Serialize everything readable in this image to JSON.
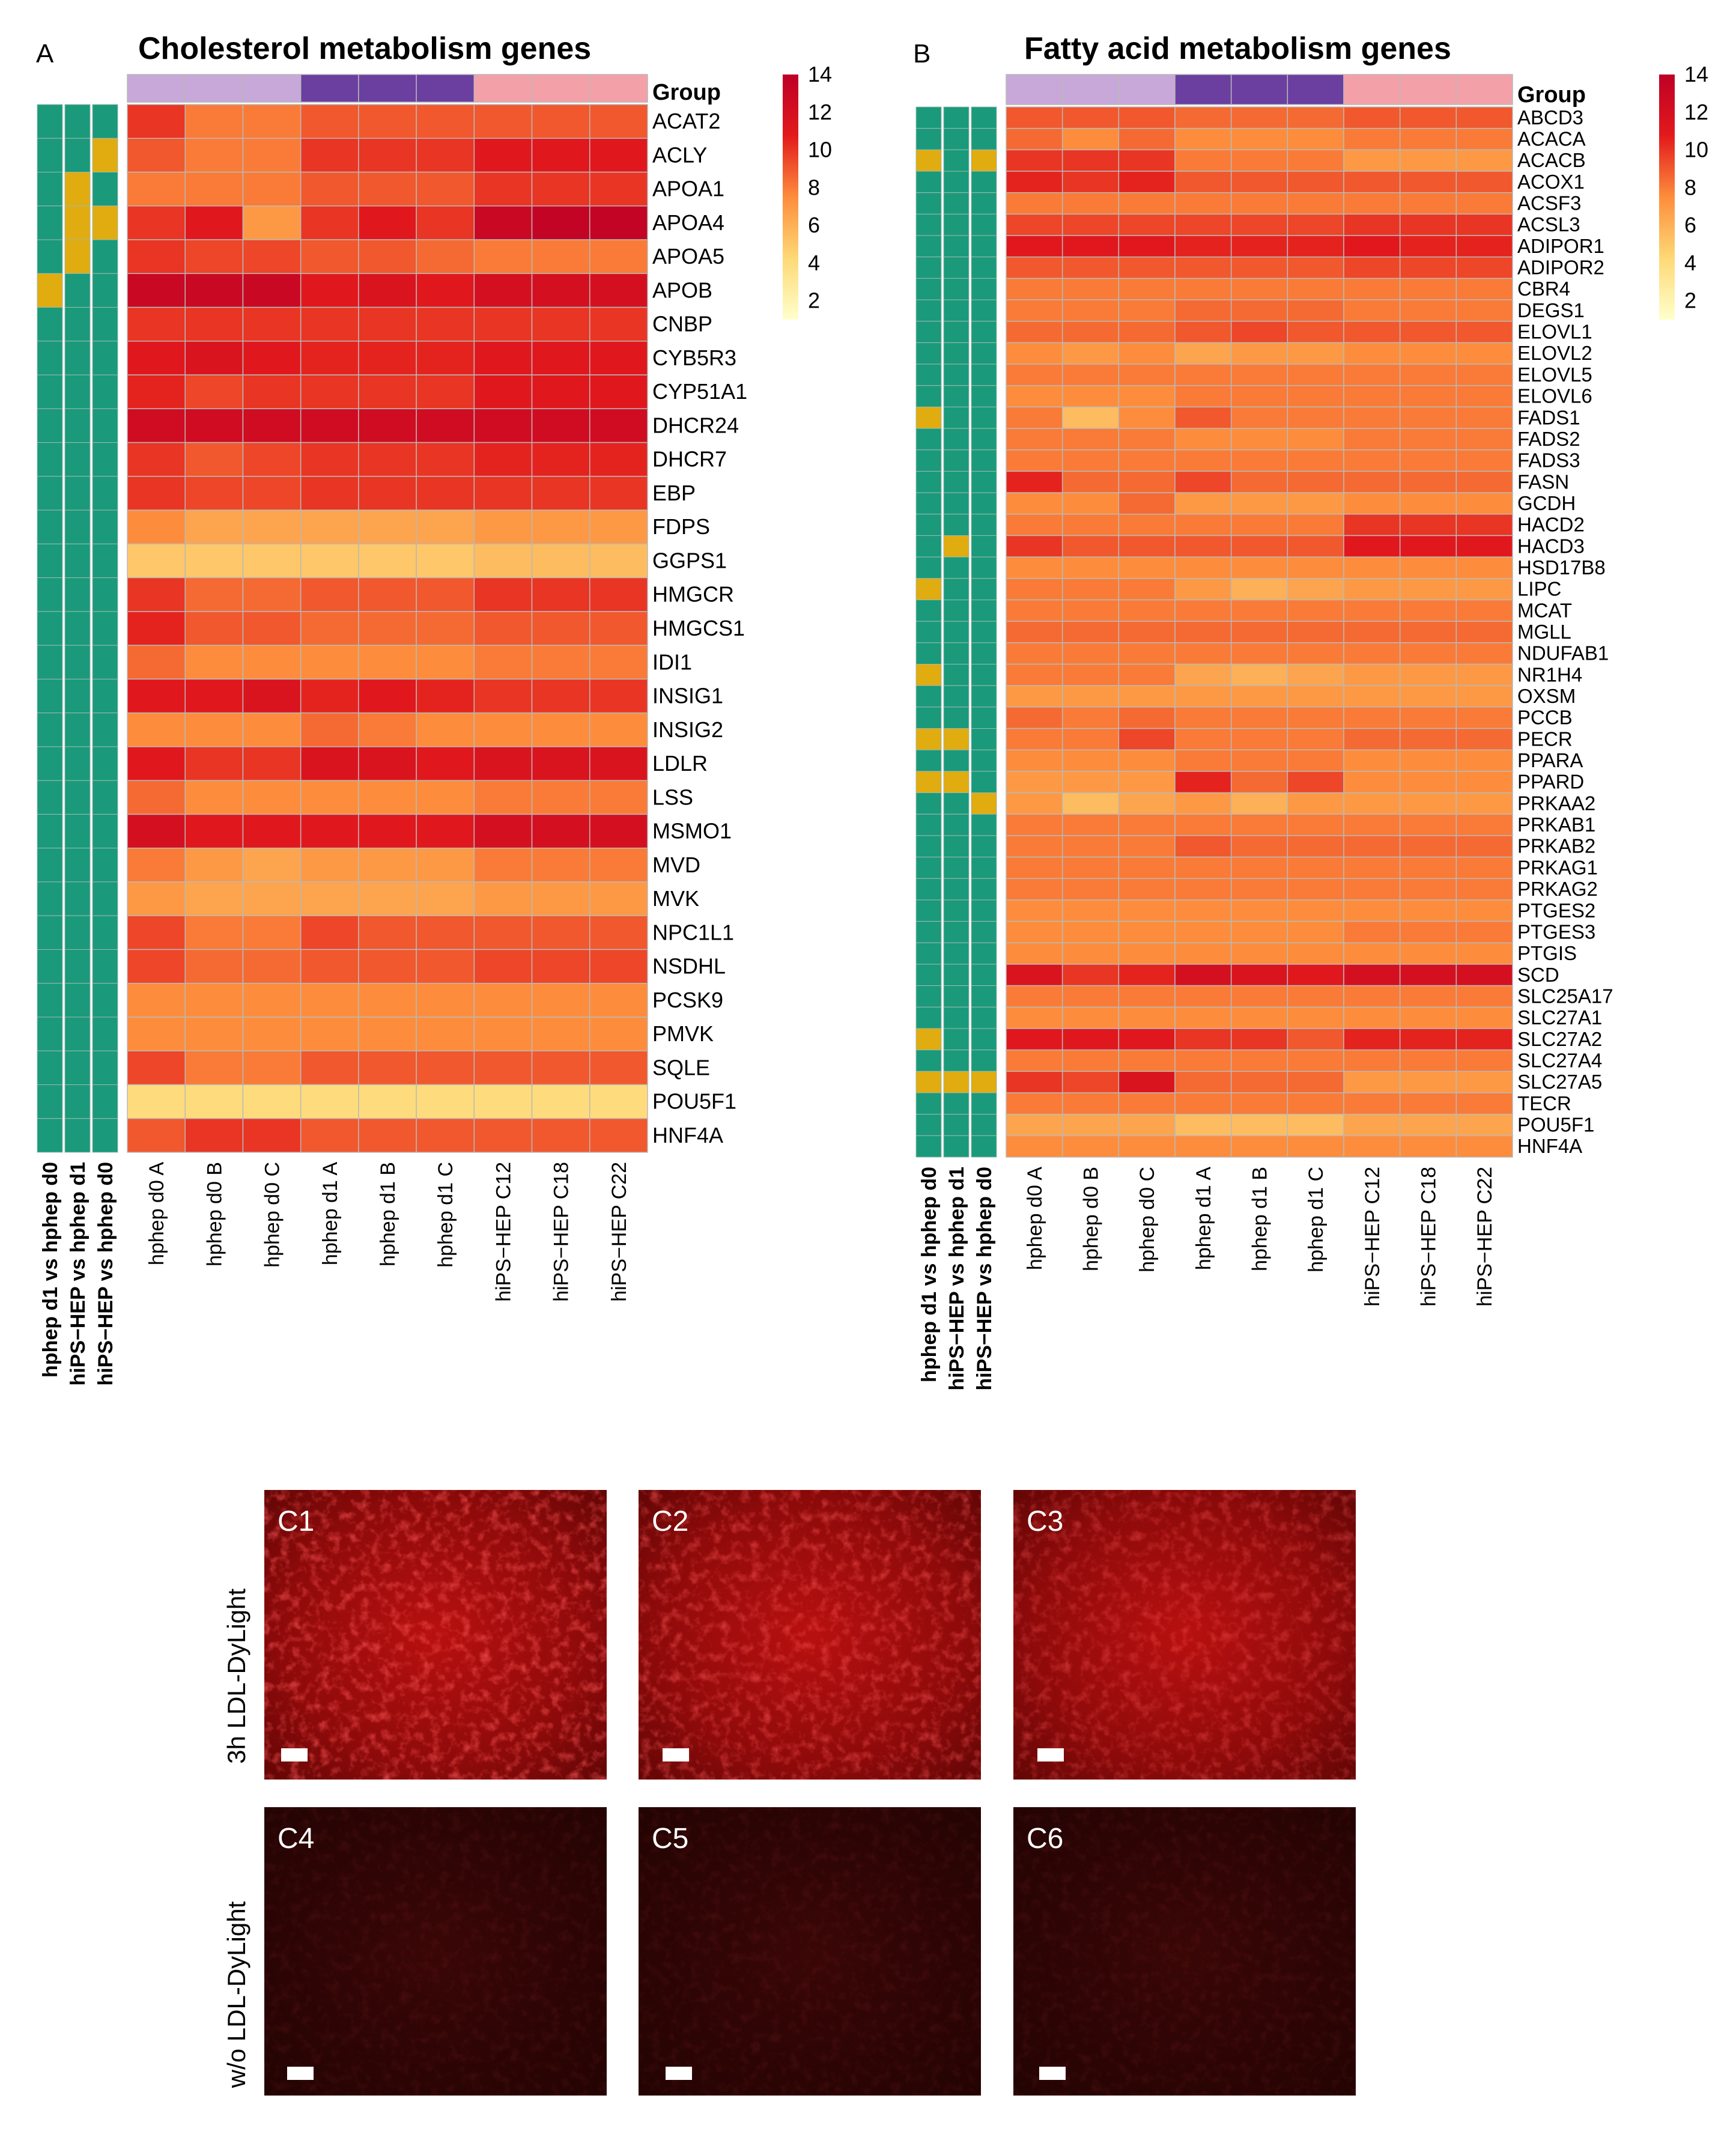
{
  "panel_a": {
    "letter": "A",
    "title": "Cholesterol metabolism genes",
    "group_label": "Group"
  },
  "panel_b": {
    "letter": "B",
    "title": "Fatty acid metabolism genes",
    "group_label": "Group"
  },
  "legend": {
    "ticks": [
      "14",
      "12",
      "10",
      "8",
      "6",
      "4",
      "2"
    ],
    "colors": {
      "low": "#fff7bc",
      "mid": "#fd8d3c",
      "high": "#bd0026"
    },
    "range": [
      1,
      14
    ]
  },
  "group_colors": [
    "#c8a8d8",
    "#6a3fa0",
    "#f4a0a8"
  ],
  "comparison_colors": {
    "ns": "#1a9a7a",
    "sig": "#e0ac10"
  },
  "chart_data": [
    {
      "type": "heatmap",
      "title": "Cholesterol metabolism genes",
      "columns": [
        "hphep d0 A",
        "hphep d0 B",
        "hphep d0 C",
        "hphep d1 A",
        "hphep d1 B",
        "hphep d1 C",
        "hiPS−HEP C12",
        "hiPS−HEP C18",
        "hiPS−HEP C22"
      ],
      "groups": [
        0,
        0,
        0,
        1,
        1,
        1,
        2,
        2,
        2
      ],
      "comparisons": [
        "hphep d1 vs hphep d0",
        "hiPS−HEP vs hphep d1",
        "hiPS−HEP vs hphep d0"
      ],
      "rows": [
        "ACAT2",
        "ACLY",
        "APOA1",
        "APOA4",
        "APOA5",
        "APOB",
        "CNBP",
        "CYB5R3",
        "CYP51A1",
        "DHCR24",
        "DHCR7",
        "EBP",
        "FDPS",
        "GGPS1",
        "HMGCR",
        "HMGCS1",
        "IDI1",
        "INSIG1",
        "INSIG2",
        "LDLR",
        "LSS",
        "MSMO1",
        "MVD",
        "MVK",
        "NPC1L1",
        "NSDHL",
        "PCSK9",
        "PMVK",
        "SQLE",
        "POU5F1",
        "HNF4A"
      ],
      "values": [
        [
          10,
          8,
          8,
          9,
          9,
          9,
          9,
          9,
          9
        ],
        [
          9,
          8,
          8,
          10,
          10,
          10,
          11,
          11,
          11
        ],
        [
          8,
          8,
          8,
          9,
          9,
          9,
          10,
          10,
          10
        ],
        [
          10,
          11,
          7,
          10,
          11,
          10,
          13,
          13.5,
          13.5
        ],
        [
          10,
          9.5,
          9.5,
          9,
          9,
          8.5,
          8,
          8,
          8
        ],
        [
          13,
          13,
          13,
          11,
          11.5,
          11,
          12,
          12,
          12
        ],
        [
          10,
          10,
          10,
          10,
          10,
          10,
          10,
          10,
          10
        ],
        [
          11,
          11.5,
          11,
          10.5,
          10.5,
          10.5,
          11,
          11,
          11
        ],
        [
          10.5,
          9.5,
          10,
          10,
          10,
          10,
          11,
          11,
          11
        ],
        [
          12.5,
          12.5,
          12.5,
          12.5,
          12.5,
          12.5,
          12.5,
          12.5,
          12.5
        ],
        [
          10,
          9,
          9.5,
          10,
          10,
          10,
          10.5,
          10.5,
          10.5
        ],
        [
          10,
          9.5,
          9.5,
          10,
          10,
          10,
          10,
          10,
          10
        ],
        [
          7.5,
          6.5,
          6.5,
          6.5,
          6.5,
          6.5,
          7,
          7,
          7
        ],
        [
          5,
          5,
          5,
          5,
          5,
          5,
          5.5,
          5.5,
          5.5
        ],
        [
          10,
          8.5,
          8.5,
          9,
          9,
          9,
          10,
          10,
          10
        ],
        [
          10.5,
          9,
          9,
          8.5,
          8.5,
          8.5,
          9,
          9,
          9
        ],
        [
          8.5,
          7.5,
          7.5,
          7.5,
          7.5,
          7.5,
          8,
          8,
          8
        ],
        [
          11,
          11,
          11.5,
          10.5,
          11,
          10.5,
          10,
          10,
          10
        ],
        [
          7.5,
          7.5,
          7.5,
          8.5,
          8,
          7.5,
          7.5,
          7.5,
          7.5
        ],
        [
          11,
          10,
          10,
          11.5,
          11.5,
          11,
          11.5,
          11.5,
          11.5
        ],
        [
          8.5,
          7.5,
          7.5,
          7.5,
          7.5,
          7.5,
          8,
          8,
          8
        ],
        [
          12,
          11,
          11,
          11,
          11,
          11,
          12,
          12,
          12
        ],
        [
          8,
          7,
          6.5,
          7,
          7,
          7,
          8,
          8,
          8
        ],
        [
          7,
          6.5,
          6.5,
          6.5,
          6.5,
          6.5,
          7,
          7,
          7
        ],
        [
          9.5,
          8,
          8,
          9.5,
          9,
          9,
          9,
          9,
          9
        ],
        [
          9.5,
          8.5,
          8.5,
          9,
          9,
          9,
          9.5,
          9.5,
          9.5
        ],
        [
          7.5,
          7.5,
          7.5,
          7.5,
          7.5,
          7.5,
          7.5,
          7.5,
          7.5
        ],
        [
          7.5,
          7.5,
          7.5,
          7.5,
          7.5,
          7.5,
          7.5,
          7.5,
          7.5
        ],
        [
          9.5,
          8,
          8,
          9,
          9,
          9,
          9,
          9,
          9
        ],
        [
          4,
          4,
          4,
          4,
          4,
          4,
          4,
          4,
          4
        ],
        [
          9,
          10,
          10,
          9,
          9,
          9,
          9,
          9,
          9
        ]
      ],
      "comparison_flags": [
        [
          0,
          0,
          0
        ],
        [
          0,
          0,
          1
        ],
        [
          0,
          1,
          0
        ],
        [
          0,
          1,
          1
        ],
        [
          0,
          1,
          0
        ],
        [
          1,
          0,
          0
        ],
        [
          0,
          0,
          0
        ],
        [
          0,
          0,
          0
        ],
        [
          0,
          0,
          0
        ],
        [
          0,
          0,
          0
        ],
        [
          0,
          0,
          0
        ],
        [
          0,
          0,
          0
        ],
        [
          0,
          0,
          0
        ],
        [
          0,
          0,
          0
        ],
        [
          0,
          0,
          0
        ],
        [
          0,
          0,
          0
        ],
        [
          0,
          0,
          0
        ],
        [
          0,
          0,
          0
        ],
        [
          0,
          0,
          0
        ],
        [
          0,
          0,
          0
        ],
        [
          0,
          0,
          0
        ],
        [
          0,
          0,
          0
        ],
        [
          0,
          0,
          0
        ],
        [
          0,
          0,
          0
        ],
        [
          0,
          0,
          0
        ],
        [
          0,
          0,
          0
        ],
        [
          0,
          0,
          0
        ],
        [
          0,
          0,
          0
        ],
        [
          0,
          0,
          0
        ],
        [
          0,
          0,
          0
        ],
        [
          0,
          0,
          0
        ]
      ]
    },
    {
      "type": "heatmap",
      "title": "Fatty acid metabolism genes",
      "columns": [
        "hphep d0 A",
        "hphep d0 B",
        "hphep d0 C",
        "hphep d1 A",
        "hphep d1 B",
        "hphep d1 C",
        "hiPS−HEP C12",
        "hiPS−HEP C18",
        "hiPS−HEP C22"
      ],
      "groups": [
        0,
        0,
        0,
        1,
        1,
        1,
        2,
        2,
        2
      ],
      "comparisons": [
        "hphep d1 vs hphep d0",
        "hiPS−HEP vs hphep d1",
        "hiPS−HEP vs hphep d0"
      ],
      "rows": [
        "ABCD3",
        "ACACA",
        "ACACB",
        "ACOX1",
        "ACSF3",
        "ACSL3",
        "ADIPOR1",
        "ADIPOR2",
        "CBR4",
        "DEGS1",
        "ELOVL1",
        "ELOVL2",
        "ELOVL5",
        "ELOVL6",
        "FADS1",
        "FADS2",
        "FADS3",
        "FASN",
        "GCDH",
        "HACD2",
        "HACD3",
        "HSD17B8",
        "LIPC",
        "MCAT",
        "MGLL",
        "NDUFAB1",
        "NR1H4",
        "OXSM",
        "PCCB",
        "PECR",
        "PPARA",
        "PPARD",
        "PRKAA2",
        "PRKAB1",
        "PRKAB2",
        "PRKAG1",
        "PRKAG2",
        "PTGES2",
        "PTGES3",
        "PTGIS",
        "SCD",
        "SLC25A17",
        "SLC27A1",
        "SLC27A2",
        "SLC27A4",
        "SLC27A5",
        "TECR",
        "POU5F1",
        "HNF4A"
      ],
      "values": [
        [
          9,
          9,
          9,
          8.5,
          8.5,
          8.5,
          9,
          9,
          9
        ],
        [
          8.5,
          7.5,
          8.5,
          7.5,
          7.5,
          7.5,
          8,
          8,
          8
        ],
        [
          10,
          10,
          10,
          8,
          8,
          8,
          7,
          7,
          7
        ],
        [
          10.5,
          10,
          10.5,
          9,
          9,
          9,
          9,
          9,
          9
        ],
        [
          8,
          8,
          8,
          8,
          8,
          8,
          8,
          8,
          8
        ],
        [
          9.5,
          9.5,
          9.5,
          9.5,
          9.5,
          9.5,
          10,
          10,
          10
        ],
        [
          11,
          11,
          11,
          10.5,
          10.5,
          10.5,
          11,
          10.5,
          10.5
        ],
        [
          9,
          9,
          9,
          9,
          9,
          9,
          9.5,
          9.5,
          9.5
        ],
        [
          8,
          8,
          8,
          8,
          8,
          8,
          8,
          8,
          8
        ],
        [
          8,
          8,
          8,
          8.5,
          8.5,
          8.5,
          8,
          8,
          8
        ],
        [
          8.5,
          8.5,
          8.5,
          9,
          9.5,
          9,
          9,
          9,
          9
        ],
        [
          7.5,
          7,
          7.5,
          6.5,
          7,
          7,
          7.5,
          7.5,
          7.5
        ],
        [
          8,
          8,
          8,
          8,
          8,
          8,
          8,
          8,
          8
        ],
        [
          7.5,
          7.5,
          7.5,
          8,
          8,
          8,
          8,
          8,
          8
        ],
        [
          8,
          5.5,
          7.5,
          9,
          8,
          8,
          8,
          8,
          8
        ],
        [
          8,
          8,
          8,
          7.5,
          7.5,
          7.5,
          8,
          8,
          8
        ],
        [
          8,
          8,
          8,
          8,
          8,
          8,
          8,
          8,
          8
        ],
        [
          10.5,
          8.5,
          8.5,
          9.5,
          8.5,
          8.5,
          8.5,
          8.5,
          8.5
        ],
        [
          7.5,
          7.5,
          8.5,
          7,
          7,
          7,
          7.5,
          7.5,
          7.5
        ],
        [
          8,
          8,
          8,
          8,
          8,
          8,
          10,
          10,
          10
        ],
        [
          10,
          9,
          9,
          9,
          9,
          9,
          11,
          11,
          11
        ],
        [
          7.5,
          7.5,
          7.5,
          7.5,
          7.5,
          7.5,
          7.5,
          7.5,
          7.5
        ],
        [
          8,
          8,
          8,
          7,
          6,
          6.5,
          7,
          7,
          7
        ],
        [
          8,
          8,
          8,
          8,
          8,
          8,
          8,
          8,
          8
        ],
        [
          8.5,
          8.5,
          8.5,
          8.5,
          8.5,
          8.5,
          8.5,
          8.5,
          8.5
        ],
        [
          8,
          8,
          8,
          8,
          8,
          8,
          8,
          8,
          8
        ],
        [
          8,
          8,
          8,
          6.5,
          6,
          6.5,
          7,
          7,
          7
        ],
        [
          7,
          7,
          7,
          7,
          7,
          7,
          7,
          7,
          7
        ],
        [
          8.5,
          8,
          8.5,
          8,
          8,
          8,
          8,
          8,
          8
        ],
        [
          8,
          8,
          9.5,
          8,
          8,
          8,
          8.5,
          8.5,
          8.5
        ],
        [
          7.5,
          7.5,
          7.5,
          8,
          8,
          8,
          7.5,
          7.5,
          7.5
        ],
        [
          7,
          7,
          7,
          10.5,
          8.5,
          9.5,
          7.5,
          7.5,
          7.5
        ],
        [
          7,
          5.5,
          6.5,
          7,
          6,
          7,
          7,
          7,
          7
        ],
        [
          8,
          8,
          8,
          8,
          8,
          8,
          8,
          8,
          8
        ],
        [
          8,
          8,
          8,
          9,
          8.5,
          8.5,
          8.5,
          8.5,
          8.5
        ],
        [
          8,
          8,
          8,
          8,
          8,
          8,
          8,
          8,
          8
        ],
        [
          8,
          8,
          8,
          8,
          8,
          8,
          8,
          8,
          8
        ],
        [
          7.5,
          7.5,
          7.5,
          7.5,
          7.5,
          7.5,
          7.5,
          7.5,
          7.5
        ],
        [
          7.5,
          7.5,
          7.5,
          7.5,
          7.5,
          7.5,
          8,
          8,
          8
        ],
        [
          7.5,
          7.5,
          7.5,
          7.5,
          7.5,
          7.5,
          7.5,
          7.5,
          7.5
        ],
        [
          11.5,
          10,
          10.5,
          12,
          11.5,
          11,
          12,
          12,
          12
        ],
        [
          8,
          8,
          8,
          8,
          8,
          8,
          8,
          8,
          8
        ],
        [
          7.5,
          7.5,
          7.5,
          7.5,
          7.5,
          7.5,
          7.5,
          7.5,
          7.5
        ],
        [
          11,
          11,
          11,
          10,
          10,
          9,
          10.5,
          10.5,
          10.5
        ],
        [
          8,
          8,
          8,
          8,
          8,
          8,
          8,
          8,
          8
        ],
        [
          10,
          9.5,
          11.5,
          8.5,
          8.5,
          8.5,
          7,
          7,
          7
        ],
        [
          8,
          8,
          8,
          8,
          8,
          8,
          8,
          8,
          8
        ],
        [
          6.5,
          6.5,
          6.5,
          5.5,
          5.5,
          5.5,
          6.5,
          6.5,
          6.5
        ],
        [
          7.5,
          7.5,
          7.5,
          7.5,
          7.5,
          7.5,
          7.5,
          7.5,
          7.5
        ]
      ],
      "comparison_flags": [
        [
          0,
          0,
          0
        ],
        [
          0,
          0,
          0
        ],
        [
          1,
          0,
          1
        ],
        [
          0,
          0,
          0
        ],
        [
          0,
          0,
          0
        ],
        [
          0,
          0,
          0
        ],
        [
          0,
          0,
          0
        ],
        [
          0,
          0,
          0
        ],
        [
          0,
          0,
          0
        ],
        [
          0,
          0,
          0
        ],
        [
          0,
          0,
          0
        ],
        [
          0,
          0,
          0
        ],
        [
          0,
          0,
          0
        ],
        [
          0,
          0,
          0
        ],
        [
          1,
          0,
          0
        ],
        [
          0,
          0,
          0
        ],
        [
          0,
          0,
          0
        ],
        [
          0,
          0,
          0
        ],
        [
          0,
          0,
          0
        ],
        [
          0,
          0,
          0
        ],
        [
          0,
          1,
          0
        ],
        [
          0,
          0,
          0
        ],
        [
          1,
          0,
          0
        ],
        [
          0,
          0,
          0
        ],
        [
          0,
          0,
          0
        ],
        [
          0,
          0,
          0
        ],
        [
          1,
          0,
          0
        ],
        [
          0,
          0,
          0
        ],
        [
          0,
          0,
          0
        ],
        [
          1,
          1,
          0
        ],
        [
          0,
          0,
          0
        ],
        [
          1,
          1,
          0
        ],
        [
          0,
          0,
          1
        ],
        [
          0,
          0,
          0
        ],
        [
          0,
          0,
          0
        ],
        [
          0,
          0,
          0
        ],
        [
          0,
          0,
          0
        ],
        [
          0,
          0,
          0
        ],
        [
          0,
          0,
          0
        ],
        [
          0,
          0,
          0
        ],
        [
          0,
          0,
          0
        ],
        [
          0,
          0,
          0
        ],
        [
          0,
          0,
          0
        ],
        [
          1,
          0,
          0
        ],
        [
          0,
          0,
          0
        ],
        [
          1,
          1,
          1
        ],
        [
          0,
          0,
          0
        ],
        [
          0,
          0,
          0
        ],
        [
          0,
          0,
          0
        ]
      ]
    }
  ],
  "microscopy": {
    "rows": [
      {
        "label": "3h LDL-DyLight",
        "brightness": "high"
      },
      {
        "label": "w/o LDL-DyLight",
        "brightness": "low"
      }
    ],
    "panels": [
      "C1",
      "C2",
      "C3",
      "C4",
      "C5",
      "C6"
    ]
  }
}
